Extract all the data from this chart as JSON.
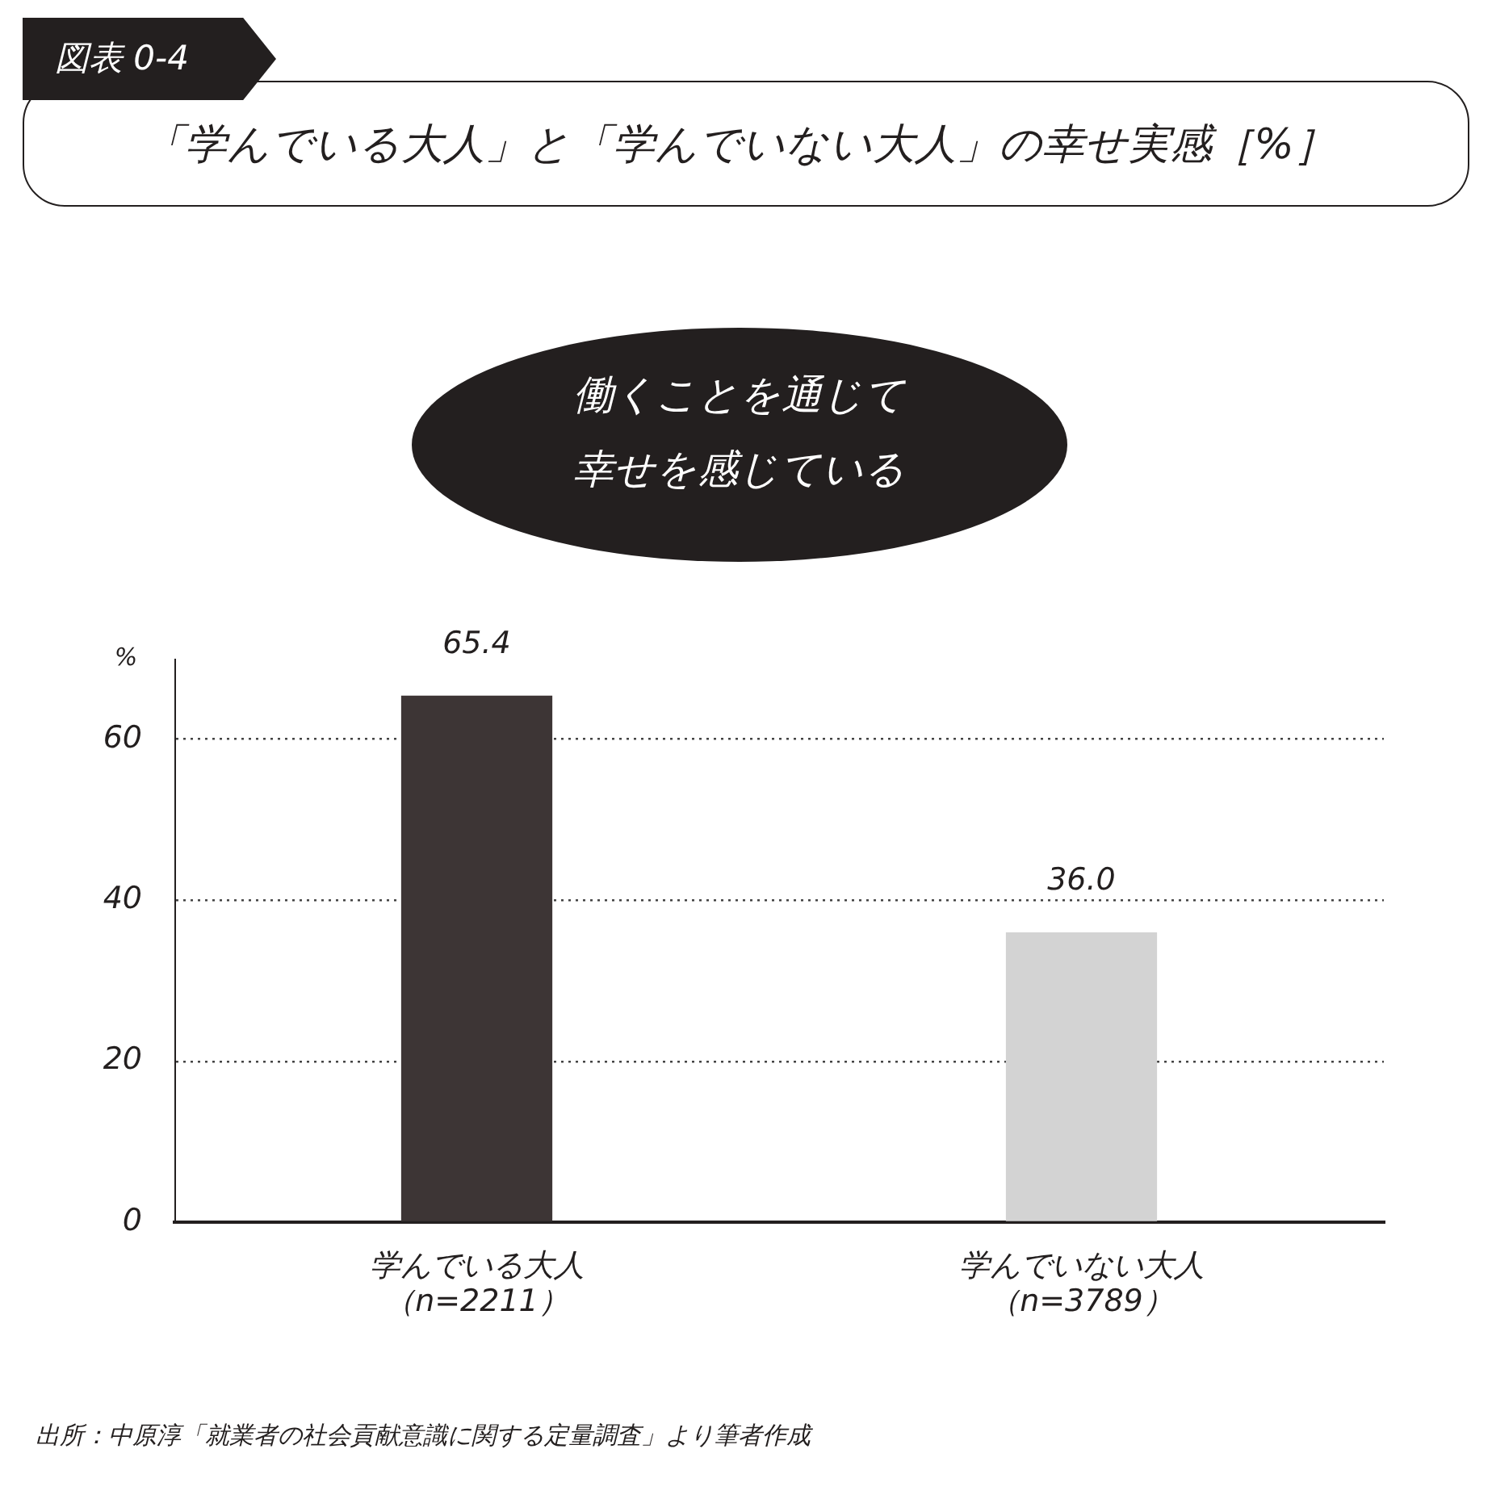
{
  "chart_data": {
    "type": "bar",
    "title": "「学んでいる大人」と「学んでいない大人」の幸せ実感［%］",
    "subtitle": "働くことを通じて幸せを感じている",
    "ylabel": "%",
    "annotations": [
      "図表 0-4",
      "出所：中原淳「就業者の社会貢献意識に関する定量調査」より筆者作成"
    ],
    "categories": [
      "学んでいる大人（n=2211）",
      "学んでいない大人（n=3789）"
    ],
    "values": [
      65.4,
      36.0
    ],
    "value_labels": [
      "65.4",
      "36.0"
    ],
    "colors": [
      "#3d3535",
      "#d3d3d3"
    ],
    "ylim": [
      0,
      70
    ],
    "yticks": [
      0,
      20,
      40,
      60
    ],
    "grid": "y"
  }
}
